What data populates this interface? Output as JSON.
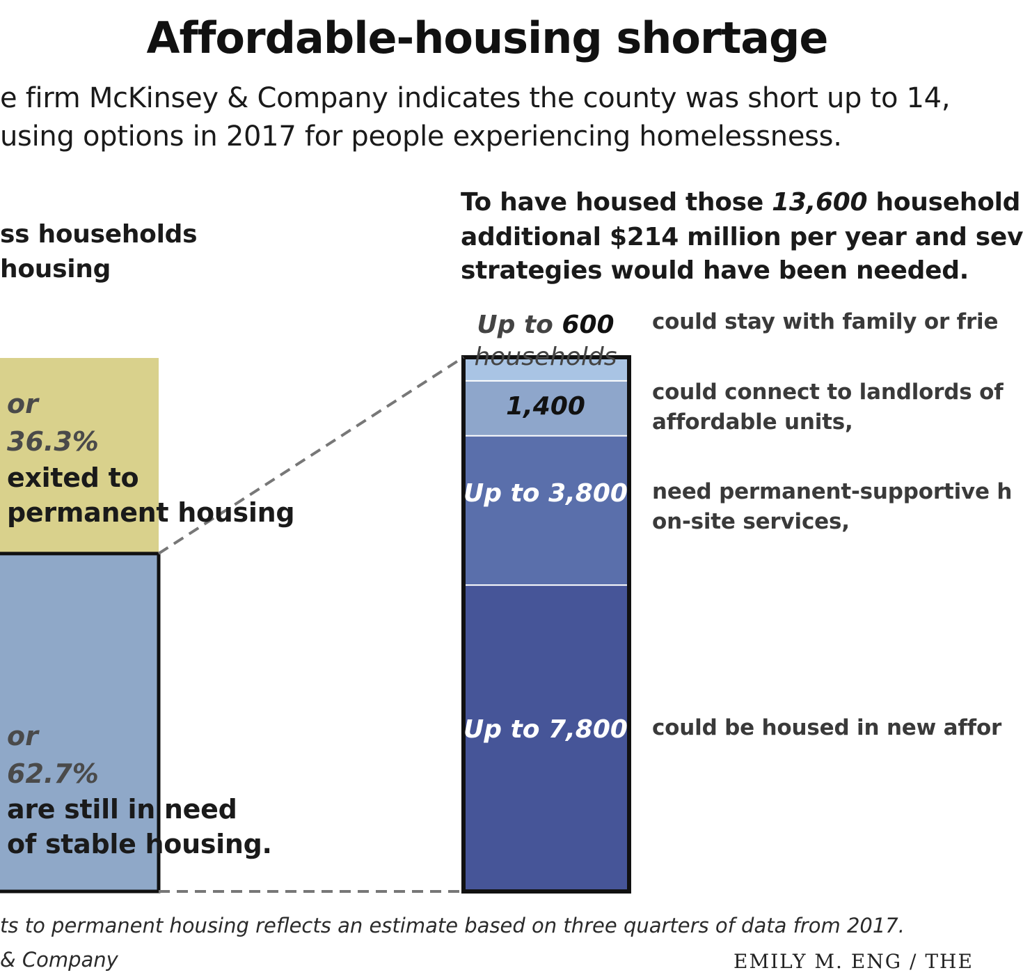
{
  "title": "Affordable-housing shortage",
  "intro": {
    "line1": "e firm McKinsey & Company indicates the county was short up to 14,",
    "line2": "using options in 2017 for people experiencing homelessness."
  },
  "left_panel": {
    "heading_line1": "ss households",
    "heading_line2": "housing",
    "exited": {
      "or": "or",
      "pct": "36.3%",
      "text1": "exited to",
      "text2": "permanent housing"
    },
    "in_need": {
      "or": "or",
      "pct": "62.7%",
      "text1": "are still in need",
      "text2": "of stable housing."
    }
  },
  "right_panel": {
    "heading_line1_pre": "To have housed those ",
    "heading_line1_bold": "13,600",
    "heading_line1_post": " household",
    "heading_line2": "additional $214 million per year and sev",
    "heading_line3": "strategies would have been needed."
  },
  "chart_data": [
    {
      "type": "bar",
      "stacked": true,
      "categories": [
        "exited to permanent housing",
        "are still in need of stable housing."
      ],
      "values_percent": [
        36.3,
        62.7
      ],
      "colors": [
        "#d9d18c",
        "#8fa8c8"
      ]
    },
    {
      "type": "bar",
      "stacked": true,
      "total": 13600,
      "segments": [
        {
          "label_pre": "Up to ",
          "label_num": "600",
          "label_post": " households",
          "value": 600,
          "color": "#a9c4e4",
          "label_color": "#444444",
          "description": "could stay with family or frie"
        },
        {
          "label_pre": "",
          "label_num": "1,400",
          "label_post": "",
          "value": 1400,
          "color": "#8ea6cb",
          "label_color": "#111111",
          "description_line1": "could connect to landlords of",
          "description_line2": "affordable units,"
        },
        {
          "label_pre": "Up to ",
          "label_num": "3,800",
          "label_post": "",
          "value": 3800,
          "color": "#5a6fab",
          "label_color": "#ffffff",
          "description_line1": "need permanent-supportive h",
          "description_line2": "on-site services,"
        },
        {
          "label_pre": "Up to ",
          "label_num": "7,800",
          "label_post": "",
          "value": 7800,
          "color": "#465598",
          "label_color": "#ffffff",
          "description": "could be housed in new affor"
        }
      ]
    }
  ],
  "footer": {
    "note": "ts to permanent housing reflects an estimate based on three quarters of data from 2017.",
    "source": "& Company",
    "credit": "EMILY M. ENG / THE"
  }
}
